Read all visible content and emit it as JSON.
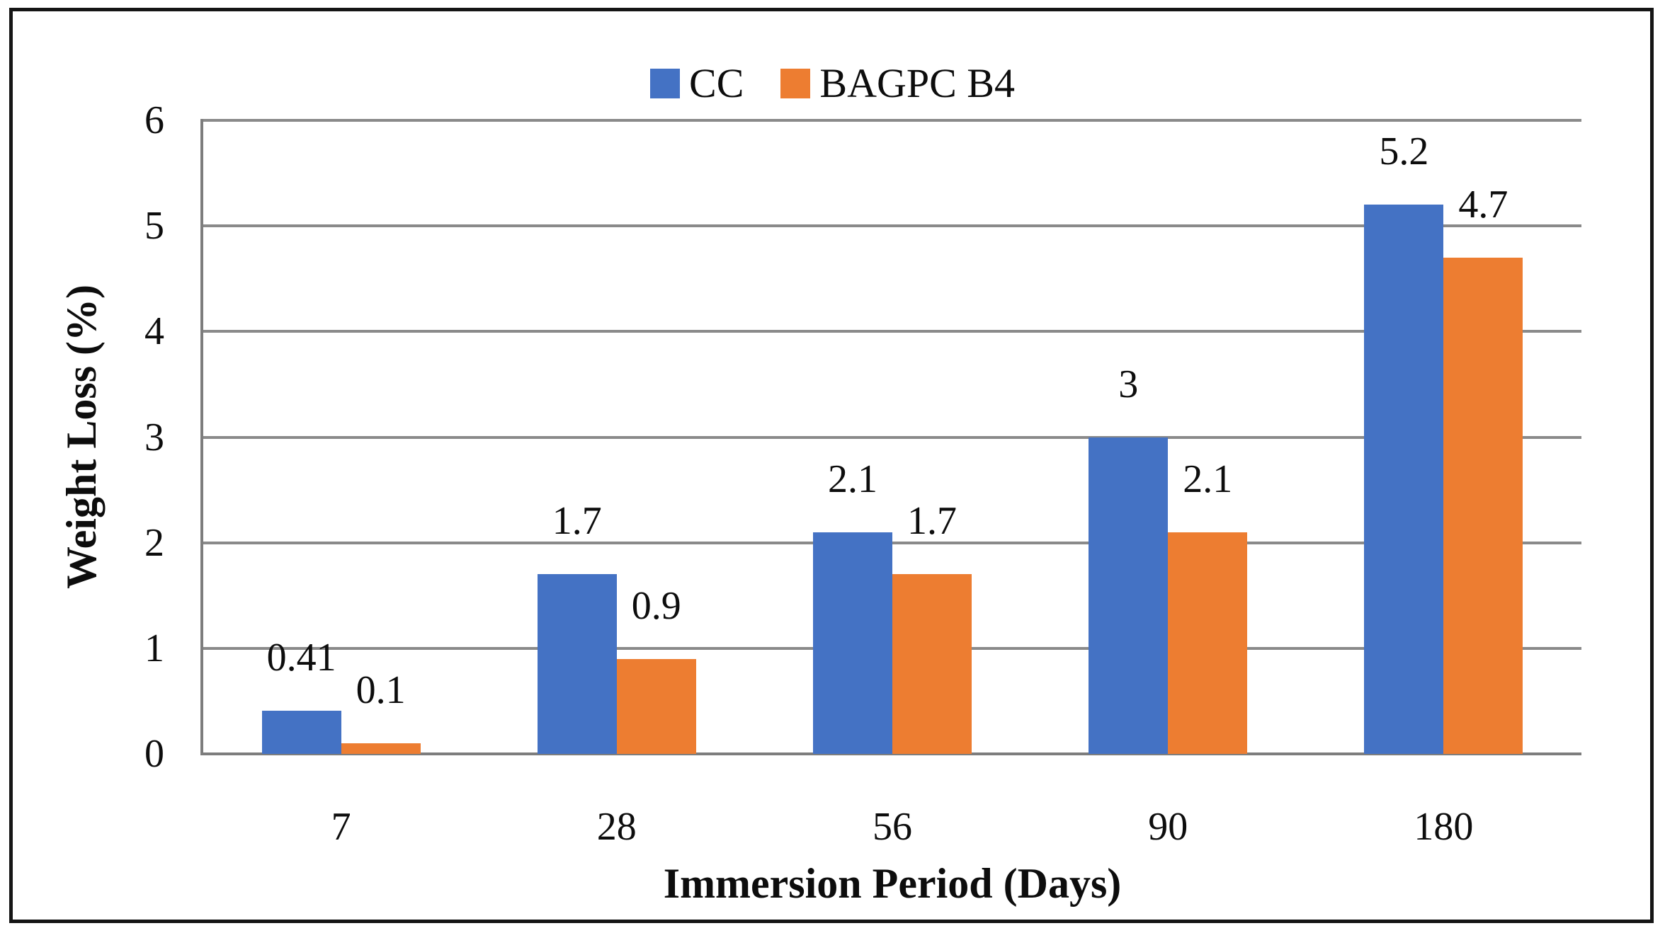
{
  "chart_data": {
    "type": "bar",
    "categories": [
      "7",
      "28",
      "56",
      "90",
      "180"
    ],
    "series": [
      {
        "name": "CC",
        "color": "#4472C4",
        "values": [
          0.41,
          1.7,
          2.1,
          3,
          5.2
        ],
        "labels": [
          "0.41",
          "1.7",
          "2.1",
          "3",
          "5.2"
        ]
      },
      {
        "name": "BAGPC B4",
        "color": "#ED7D31",
        "values": [
          0.1,
          0.9,
          1.7,
          2.1,
          4.7
        ],
        "labels": [
          "0.1",
          "0.9",
          "1.7",
          "2.1",
          "4.7"
        ]
      }
    ],
    "xlabel": "Immersion Period (Days)",
    "ylabel": "Weight Loss (%)",
    "ylim": [
      0,
      6
    ],
    "yticks": [
      "0",
      "1",
      "2",
      "3",
      "4",
      "5",
      "6"
    ],
    "grid": true,
    "legend_position": "top-center",
    "gridline_color": "#8a8a8a",
    "axis_color": "#7d7d7d",
    "frame_border_color": "#151515",
    "label_color": "#0d0d0d"
  }
}
